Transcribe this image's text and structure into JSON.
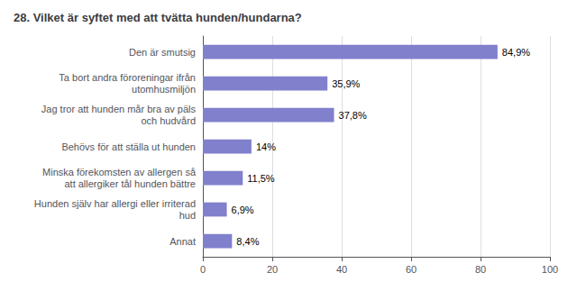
{
  "chart_data": {
    "type": "bar",
    "orientation": "horizontal",
    "title": "28. Vilket är syftet med att tvätta hunden/hundarna?",
    "categories": [
      "Annat",
      "Hunden själv har allergi eller irriterad\nhud",
      "Minska förekomsten av allergen så\natt allergiker tål hunden bättre",
      "Behövs för att ställa ut hunden",
      "Jag tror att hunden mår bra av päls\noch hudvård",
      "Ta bort andra föroreningar ifrån\nutomhusmiljön",
      "Den är smutsig"
    ],
    "values": [
      8.4,
      6.9,
      11.5,
      14.0,
      37.8,
      35.9,
      84.9
    ],
    "value_labels": [
      "8,4%",
      "6,9%",
      "11,5%",
      "14%",
      "37,8%",
      "35,9%",
      "84,9%"
    ],
    "color": "#8080cc",
    "xlim": [
      0,
      100
    ],
    "xticks": [
      0,
      20,
      40,
      60,
      80,
      100
    ],
    "grid": true,
    "data_labels": true
  }
}
